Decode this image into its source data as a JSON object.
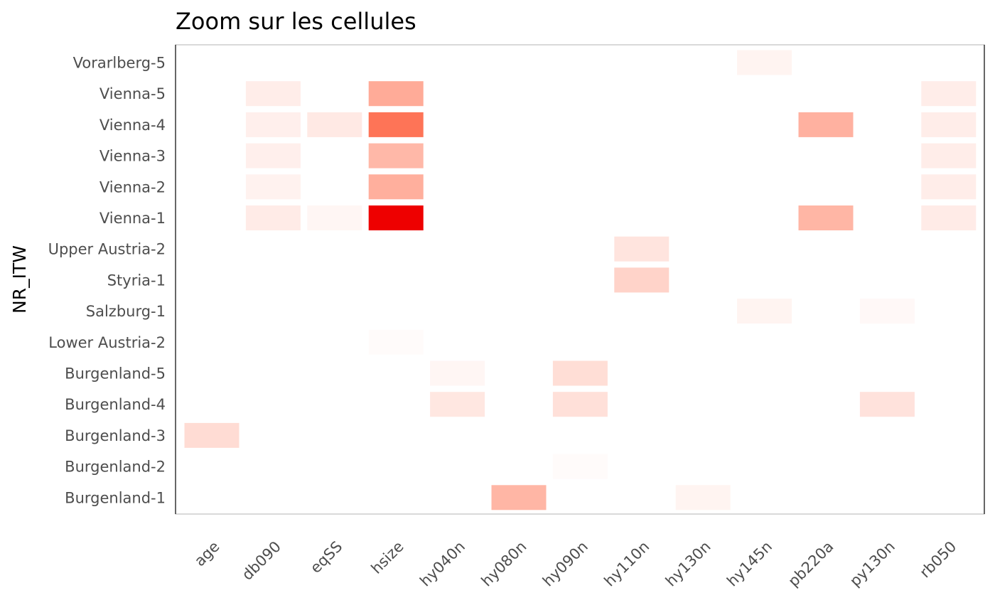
{
  "chart_data": {
    "type": "heatmap",
    "title": "Zoom sur les cellules",
    "xlabel": "",
    "ylabel": "NR_ITW",
    "x_categories": [
      "age",
      "db090",
      "eqSS",
      "hsize",
      "hy040n",
      "hy080n",
      "hy090n",
      "hy110n",
      "hy130n",
      "hy145n",
      "pb220a",
      "py130n",
      "rb050"
    ],
    "y_categories": [
      "Burgenland-1",
      "Burgenland-2",
      "Burgenland-3",
      "Burgenland-4",
      "Burgenland-5",
      "Lower Austria-2",
      "Salzburg-1",
      "Styria-1",
      "Upper Austria-2",
      "Vienna-1",
      "Vienna-2",
      "Vienna-3",
      "Vienna-4",
      "Vienna-5",
      "Vorarlberg-5"
    ],
    "cells": [
      {
        "x": "hy145n",
        "y": "Vorarlberg-5",
        "value": 0.05
      },
      {
        "x": "db090",
        "y": "Vienna-5",
        "value": 0.08
      },
      {
        "x": "hsize",
        "y": "Vienna-5",
        "value": 0.38
      },
      {
        "x": "rb050",
        "y": "Vienna-5",
        "value": 0.08
      },
      {
        "x": "db090",
        "y": "Vienna-4",
        "value": 0.07
      },
      {
        "x": "eqSS",
        "y": "Vienna-4",
        "value": 0.1
      },
      {
        "x": "hsize",
        "y": "Vienna-4",
        "value": 0.62
      },
      {
        "x": "pb220a",
        "y": "Vienna-4",
        "value": 0.35
      },
      {
        "x": "rb050",
        "y": "Vienna-4",
        "value": 0.08
      },
      {
        "x": "db090",
        "y": "Vienna-3",
        "value": 0.07
      },
      {
        "x": "hsize",
        "y": "Vienna-3",
        "value": 0.32
      },
      {
        "x": "rb050",
        "y": "Vienna-3",
        "value": 0.08
      },
      {
        "x": "db090",
        "y": "Vienna-2",
        "value": 0.06
      },
      {
        "x": "hsize",
        "y": "Vienna-2",
        "value": 0.36
      },
      {
        "x": "rb050",
        "y": "Vienna-2",
        "value": 0.08
      },
      {
        "x": "db090",
        "y": "Vienna-1",
        "value": 0.09
      },
      {
        "x": "eqSS",
        "y": "Vienna-1",
        "value": 0.04
      },
      {
        "x": "hsize",
        "y": "Vienna-1",
        "value": 1.0
      },
      {
        "x": "pb220a",
        "y": "Vienna-1",
        "value": 0.33
      },
      {
        "x": "rb050",
        "y": "Vienna-1",
        "value": 0.09
      },
      {
        "x": "hy110n",
        "y": "Upper Austria-2",
        "value": 0.12
      },
      {
        "x": "hy110n",
        "y": "Styria-1",
        "value": 0.2
      },
      {
        "x": "hy145n",
        "y": "Salzburg-1",
        "value": 0.05
      },
      {
        "x": "py130n",
        "y": "Salzburg-1",
        "value": 0.03
      },
      {
        "x": "hsize",
        "y": "Lower Austria-2",
        "value": 0.02
      },
      {
        "x": "hy040n",
        "y": "Burgenland-5",
        "value": 0.04
      },
      {
        "x": "hy090n",
        "y": "Burgenland-5",
        "value": 0.15
      },
      {
        "x": "hy040n",
        "y": "Burgenland-4",
        "value": 0.11
      },
      {
        "x": "hy090n",
        "y": "Burgenland-4",
        "value": 0.14
      },
      {
        "x": "py130n",
        "y": "Burgenland-4",
        "value": 0.13
      },
      {
        "x": "age",
        "y": "Burgenland-3",
        "value": 0.16
      },
      {
        "x": "hy090n",
        "y": "Burgenland-2",
        "value": 0.02
      },
      {
        "x": "hy080n",
        "y": "Burgenland-1",
        "value": 0.33
      },
      {
        "x": "hy130n",
        "y": "Burgenland-1",
        "value": 0.05
      }
    ],
    "color_scale": {
      "low": "#ffffff",
      "mid": "#ff7a5c",
      "high": "#ee0000"
    },
    "grid": false,
    "legend": "none"
  }
}
